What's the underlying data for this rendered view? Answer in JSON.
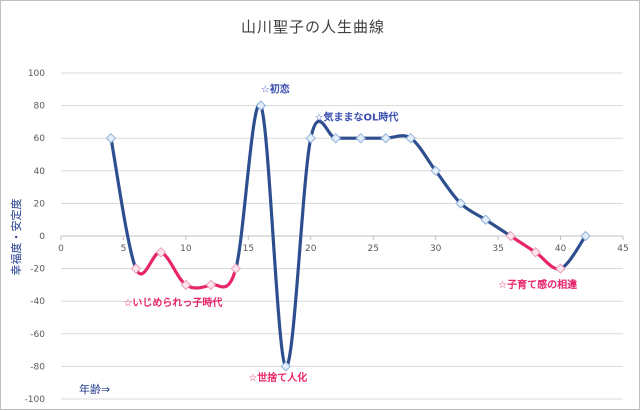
{
  "chart_data": {
    "type": "line",
    "title": "山川聖子の人生曲線",
    "xlabel": "年齢⇒",
    "ylabel": "幸福度・安定度",
    "xlim": [
      0,
      45
    ],
    "ylim": [
      -100,
      100
    ],
    "x_ticks": [
      0,
      5,
      10,
      15,
      20,
      25,
      30,
      35,
      40,
      45
    ],
    "y_ticks": [
      -100,
      -80,
      -60,
      -40,
      -20,
      0,
      20,
      40,
      60,
      80,
      100
    ],
    "x_tick_labels": [
      "0",
      "5",
      "10",
      "15",
      "20",
      "25",
      "30",
      "35",
      "40",
      "45"
    ],
    "y_tick_labels": [
      "-100",
      "-80",
      "-60",
      "-40",
      "-20",
      "0",
      "20",
      "40",
      "60",
      "80",
      "100"
    ],
    "grid": "horizontal",
    "smooth": true,
    "series": [
      {
        "x": [
          4,
          6,
          8,
          10,
          12,
          14,
          16,
          18,
          20,
          22,
          24,
          26,
          28,
          30,
          32,
          34,
          36,
          38,
          40,
          42
        ],
        "y": [
          60,
          -20,
          -10,
          -30,
          -30,
          -20,
          80,
          -80,
          60,
          60,
          60,
          60,
          60,
          40,
          20,
          10,
          0,
          -10,
          -20,
          0
        ],
        "color": "#2e4f8f",
        "highlight_color": "#e8246b",
        "highlight_segments": [
          [
            1,
            5
          ],
          [
            16,
            18
          ]
        ]
      }
    ],
    "annotations": [
      {
        "text": "☆初恋",
        "x": 16,
        "y": 88,
        "color": "#3a4fb0"
      },
      {
        "text": "☆気ままなOL時代",
        "x": 20.3,
        "y": 71,
        "color": "#3a4fb0"
      },
      {
        "text": "☆いじめられっ子時代",
        "x": 5,
        "y": -43,
        "color": "#e8246b"
      },
      {
        "text": "☆世捨て人化",
        "x": 15,
        "y": -89,
        "color": "#e8246b"
      },
      {
        "text": "☆子育て感の相違",
        "x": 35,
        "y": -32,
        "color": "#e8246b"
      }
    ]
  }
}
